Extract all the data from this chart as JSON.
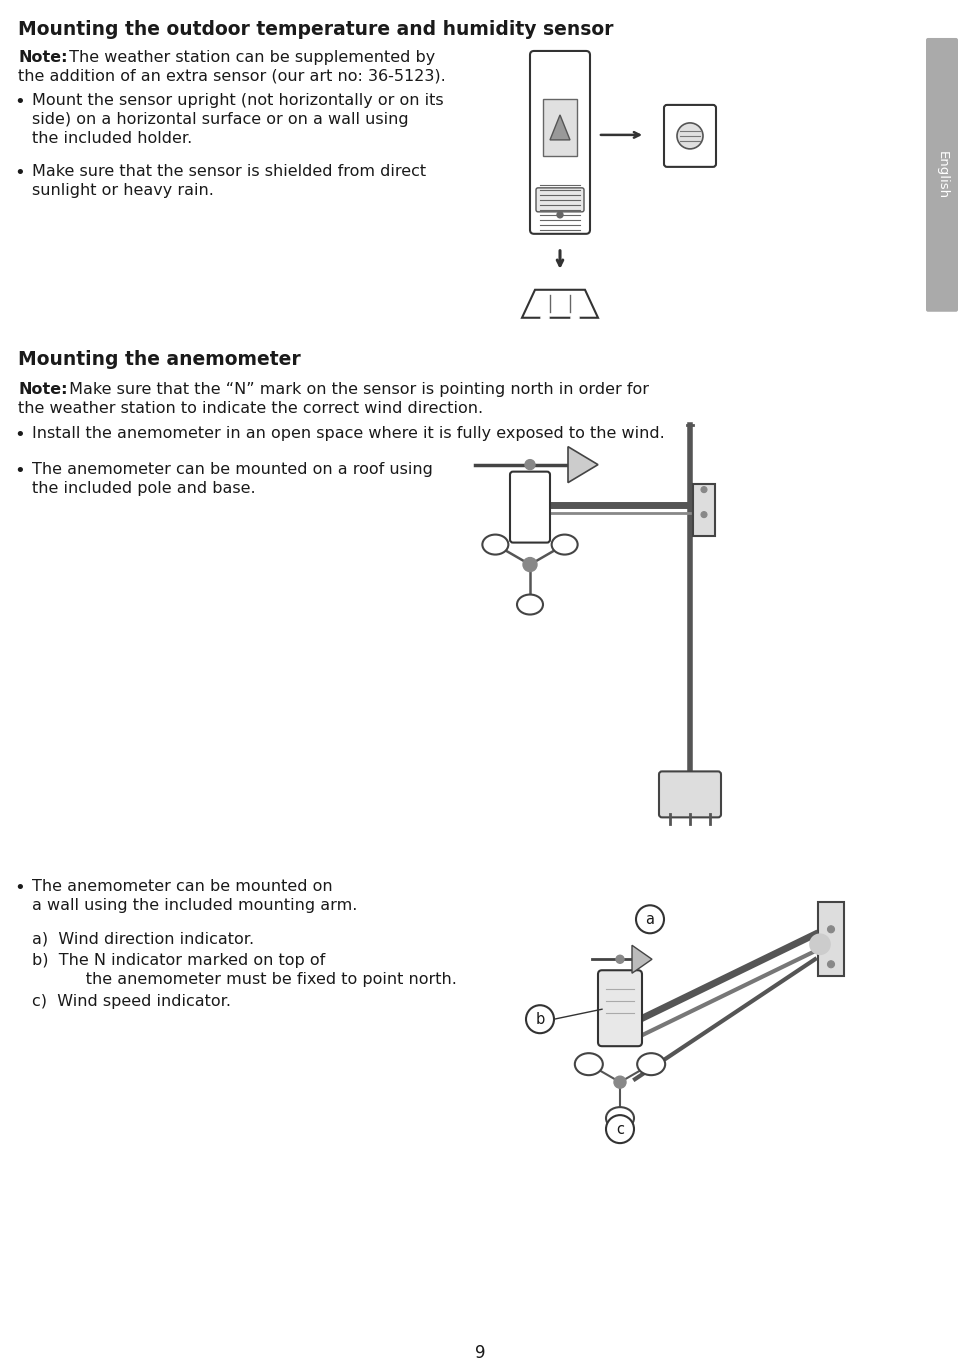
{
  "bg_color": "#ffffff",
  "page_width": 9.6,
  "page_height": 13.67,
  "dpi": 100,
  "title1": "Mounting the outdoor temperature and humidity sensor",
  "note1_bold": "Note:",
  "note1_rest": " The weather station can be supplemented by",
  "note1_line2": "the addition of an extra sensor (our art no: 36-5123).",
  "b1_l1": "Mount the sensor upright (not horizontally or on its",
  "b1_l2": "side) on a horizontal surface or on a wall using",
  "b1_l3": "the included holder.",
  "b2_l1": "Make sure that the sensor is shielded from direct",
  "b2_l2": "sunlight or heavy rain.",
  "sidebar_text": "English",
  "title2": "Mounting the anemometer",
  "note2_bold": "Note:",
  "note2_rest": " Make sure that the “N” mark on the sensor is pointing north in order for",
  "note2_line2": "the weather station to indicate the correct wind direction.",
  "b3_l1": "Install the anemometer in an open space where it is fully exposed to the wind.",
  "b4_l1": "The anemometer can be mounted on a roof using",
  "b4_l2": "the included pole and base.",
  "b5_l1": "The anemometer can be mounted on",
  "b5_l2": "a wall using the included mounting arm.",
  "la": "a)  Wind direction indicator.",
  "lb1": "b)  The N indicator marked on top of",
  "lb2": "      the anemometer must be fixed to point north.",
  "lc": "c)  Wind speed indicator.",
  "page_num": "9",
  "text_color": "#1a1a1a",
  "title_size": 13.5,
  "body_size": 11.5,
  "sidebar_color": "#aaaaaa",
  "line_color": "#333333"
}
